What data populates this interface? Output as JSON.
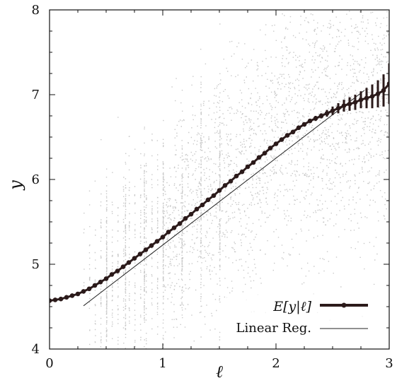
{
  "chart_data": {
    "type": "scatter",
    "xlabel": "ℓ",
    "ylabel": "y",
    "xlim": [
      0,
      3
    ],
    "ylim": [
      4,
      8
    ],
    "x_ticks": [
      "0",
      "1",
      "2",
      "3"
    ],
    "y_ticks": [
      "4",
      "5",
      "6",
      "7",
      "8"
    ],
    "grid": false,
    "legend_position": "bottom-right",
    "colors": {
      "scatter": "#9a9a9a",
      "conditional_mean": "#2b1a1a",
      "linear_reg": "#222222"
    },
    "series": [
      {
        "name": "E[y|ℓ]",
        "type": "line-with-markers-and-errorbars",
        "x": [
          0.0,
          0.05,
          0.1,
          0.15,
          0.2,
          0.25,
          0.3,
          0.35,
          0.4,
          0.45,
          0.5,
          0.55,
          0.6,
          0.65,
          0.7,
          0.75,
          0.8,
          0.85,
          0.9,
          0.95,
          1.0,
          1.05,
          1.1,
          1.15,
          1.2,
          1.25,
          1.3,
          1.35,
          1.4,
          1.45,
          1.5,
          1.55,
          1.6,
          1.65,
          1.7,
          1.75,
          1.8,
          1.85,
          1.9,
          1.95,
          2.0,
          2.05,
          2.1,
          2.15,
          2.2,
          2.25,
          2.3,
          2.35,
          2.4,
          2.45,
          2.5,
          2.55,
          2.6,
          2.65,
          2.7,
          2.75,
          2.8,
          2.85,
          2.9,
          2.95,
          3.0
        ],
        "y": [
          4.57,
          4.58,
          4.59,
          4.61,
          4.63,
          4.65,
          4.68,
          4.71,
          4.75,
          4.79,
          4.83,
          4.88,
          4.92,
          4.97,
          5.02,
          5.07,
          5.12,
          5.17,
          5.22,
          5.27,
          5.32,
          5.38,
          5.43,
          5.48,
          5.54,
          5.59,
          5.65,
          5.7,
          5.76,
          5.81,
          5.87,
          5.93,
          5.98,
          6.04,
          6.09,
          6.15,
          6.2,
          6.26,
          6.31,
          6.37,
          6.42,
          6.47,
          6.52,
          6.56,
          6.61,
          6.65,
          6.69,
          6.72,
          6.75,
          6.78,
          6.81,
          6.84,
          6.87,
          6.89,
          6.91,
          6.94,
          6.96,
          6.98,
          7.01,
          7.05,
          7.13
        ],
        "error": [
          0,
          0,
          0,
          0,
          0,
          0,
          0,
          0,
          0,
          0,
          0,
          0,
          0,
          0,
          0,
          0,
          0,
          0,
          0,
          0,
          0,
          0,
          0,
          0,
          0,
          0,
          0,
          0,
          0,
          0,
          0,
          0,
          0,
          0,
          0,
          0,
          0,
          0,
          0,
          0,
          0,
          0,
          0,
          0,
          0.01,
          0.02,
          0.02,
          0.03,
          0.03,
          0.04,
          0.05,
          0.06,
          0.07,
          0.08,
          0.09,
          0.1,
          0.12,
          0.14,
          0.16,
          0.19,
          0.24
        ]
      },
      {
        "name": "Linear Reg.",
        "type": "line",
        "x": [
          0.3,
          2.78
        ],
        "y": [
          4.51,
          7.05
        ]
      }
    ],
    "legend": [
      {
        "label": "E[y|ℓ]",
        "style": "thick-line-marker"
      },
      {
        "label": "Linear Reg.",
        "style": "thin-line"
      }
    ],
    "scatter_description": "dense gray point cloud; vertical stripes at discrete low ℓ values, becoming continuous above ℓ≈1"
  }
}
